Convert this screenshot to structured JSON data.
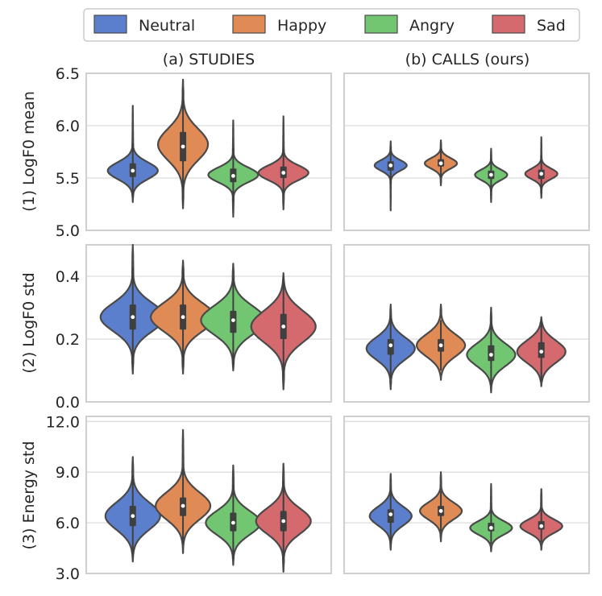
{
  "colors": {
    "Neutral": "#5B7FCC",
    "Happy": "#E08B55",
    "Angry": "#72C671",
    "Sad": "#D4696E",
    "grid": "#dcdcdc",
    "frame": "#cfcfcf",
    "outline": "#4a4a4a"
  },
  "legend": [
    "Neutral",
    "Happy",
    "Angry",
    "Sad"
  ],
  "columns": [
    "(a) STUDIES",
    "(b) CALLS (ours)"
  ],
  "chart_data": [
    {
      "type": "violin",
      "row": 0,
      "col": 0,
      "ylabel": "(1) LogF0 mean",
      "ylim": [
        5.0,
        6.5
      ],
      "yticks": [
        "5.0",
        "5.5",
        "6.0",
        "6.5"
      ],
      "ytick_values": [
        5.0,
        5.5,
        6.0,
        6.5
      ],
      "categories": [
        "Neutral",
        "Happy",
        "Angry",
        "Sad"
      ],
      "series": [
        {
          "name": "Neutral",
          "min": 5.27,
          "max": 6.19,
          "q1": 5.51,
          "median": 5.57,
          "q3": 5.64,
          "mode": 5.57,
          "spread": 0.08
        },
        {
          "name": "Happy",
          "min": 5.21,
          "max": 6.44,
          "q1": 5.66,
          "median": 5.8,
          "q3": 5.94,
          "mode": 5.82,
          "spread": 0.15
        },
        {
          "name": "Angry",
          "min": 5.13,
          "max": 6.05,
          "q1": 5.46,
          "median": 5.52,
          "q3": 5.59,
          "mode": 5.53,
          "spread": 0.07
        },
        {
          "name": "Sad",
          "min": 5.2,
          "max": 6.09,
          "q1": 5.5,
          "median": 5.55,
          "q3": 5.61,
          "mode": 5.55,
          "spread": 0.07
        }
      ]
    },
    {
      "type": "violin",
      "row": 0,
      "col": 1,
      "ylabel": "",
      "ylim": [
        5.0,
        6.5
      ],
      "categories": [
        "Neutral",
        "Happy",
        "Angry",
        "Sad"
      ],
      "series": [
        {
          "name": "Neutral",
          "min": 5.19,
          "max": 5.85,
          "q1": 5.57,
          "median": 5.62,
          "q3": 5.66,
          "mode": 5.62,
          "spread": 0.05
        },
        {
          "name": "Happy",
          "min": 5.43,
          "max": 5.86,
          "q1": 5.61,
          "median": 5.64,
          "q3": 5.68,
          "mode": 5.64,
          "spread": 0.05
        },
        {
          "name": "Angry",
          "min": 5.27,
          "max": 5.78,
          "q1": 5.49,
          "median": 5.53,
          "q3": 5.57,
          "mode": 5.53,
          "spread": 0.05
        },
        {
          "name": "Sad",
          "min": 5.31,
          "max": 5.89,
          "q1": 5.49,
          "median": 5.54,
          "q3": 5.58,
          "mode": 5.54,
          "spread": 0.05
        }
      ]
    },
    {
      "type": "violin",
      "row": 1,
      "col": 0,
      "ylabel": "(2) LogF0 std",
      "ylim": [
        0.0,
        0.5
      ],
      "yticks": [
        "0.0",
        "0.2",
        "0.4"
      ],
      "ytick_values": [
        0.0,
        0.2,
        0.4
      ],
      "categories": [
        "Neutral",
        "Happy",
        "Angry",
        "Sad"
      ],
      "series": [
        {
          "name": "Neutral",
          "min": 0.09,
          "max": 0.5,
          "q1": 0.23,
          "median": 0.27,
          "q3": 0.31,
          "mode": 0.27,
          "spread": 0.045
        },
        {
          "name": "Happy",
          "min": 0.09,
          "max": 0.45,
          "q1": 0.23,
          "median": 0.27,
          "q3": 0.31,
          "mode": 0.27,
          "spread": 0.045
        },
        {
          "name": "Angry",
          "min": 0.1,
          "max": 0.44,
          "q1": 0.22,
          "median": 0.26,
          "q3": 0.29,
          "mode": 0.26,
          "spread": 0.045
        },
        {
          "name": "Sad",
          "min": 0.04,
          "max": 0.41,
          "q1": 0.2,
          "median": 0.24,
          "q3": 0.28,
          "mode": 0.24,
          "spread": 0.05
        }
      ]
    },
    {
      "type": "violin",
      "row": 1,
      "col": 1,
      "ylabel": "",
      "ylim": [
        0.0,
        0.5
      ],
      "categories": [
        "Neutral",
        "Happy",
        "Angry",
        "Sad"
      ],
      "series": [
        {
          "name": "Neutral",
          "min": 0.04,
          "max": 0.31,
          "q1": 0.15,
          "median": 0.18,
          "q3": 0.2,
          "mode": 0.17,
          "spread": 0.035
        },
        {
          "name": "Happy",
          "min": 0.07,
          "max": 0.31,
          "q1": 0.16,
          "median": 0.18,
          "q3": 0.2,
          "mode": 0.18,
          "spread": 0.035
        },
        {
          "name": "Angry",
          "min": 0.03,
          "max": 0.3,
          "q1": 0.13,
          "median": 0.15,
          "q3": 0.18,
          "mode": 0.15,
          "spread": 0.035
        },
        {
          "name": "Sad",
          "min": 0.05,
          "max": 0.27,
          "q1": 0.14,
          "median": 0.16,
          "q3": 0.19,
          "mode": 0.16,
          "spread": 0.035
        }
      ]
    },
    {
      "type": "violin",
      "row": 2,
      "col": 0,
      "ylabel": "(3) Energy std",
      "ylim": [
        3.0,
        12.5
      ],
      "yticks": [
        "3.0",
        "6.0",
        "9.0",
        "12.0"
      ],
      "ytick_values": [
        3.0,
        6.0,
        9.0,
        12.0
      ],
      "categories": [
        "Neutral",
        "Happy",
        "Angry",
        "Sad"
      ],
      "series": [
        {
          "name": "Neutral",
          "min": 3.7,
          "max": 9.9,
          "q1": 5.8,
          "median": 6.4,
          "q3": 7.0,
          "mode": 6.4,
          "spread": 0.8
        },
        {
          "name": "Happy",
          "min": 4.2,
          "max": 11.5,
          "q1": 6.4,
          "median": 7.0,
          "q3": 7.5,
          "mode": 7.0,
          "spread": 0.8
        },
        {
          "name": "Angry",
          "min": 3.5,
          "max": 9.4,
          "q1": 5.5,
          "median": 6.0,
          "q3": 6.6,
          "mode": 6.0,
          "spread": 0.7
        },
        {
          "name": "Sad",
          "min": 3.1,
          "max": 9.5,
          "q1": 5.5,
          "median": 6.1,
          "q3": 6.7,
          "mode": 6.1,
          "spread": 0.75
        }
      ]
    },
    {
      "type": "violin",
      "row": 2,
      "col": 1,
      "ylabel": "",
      "ylim": [
        3.0,
        12.5
      ],
      "categories": [
        "Neutral",
        "Happy",
        "Angry",
        "Sad"
      ],
      "series": [
        {
          "name": "Neutral",
          "min": 4.4,
          "max": 8.9,
          "q1": 6.0,
          "median": 6.5,
          "q3": 6.8,
          "mode": 6.4,
          "spread": 0.55
        },
        {
          "name": "Happy",
          "min": 4.9,
          "max": 9.0,
          "q1": 6.4,
          "median": 6.7,
          "q3": 7.0,
          "mode": 6.7,
          "spread": 0.5
        },
        {
          "name": "Angry",
          "min": 4.3,
          "max": 8.3,
          "q1": 5.5,
          "median": 5.7,
          "q3": 6.0,
          "mode": 5.7,
          "spread": 0.4
        },
        {
          "name": "Sad",
          "min": 4.4,
          "max": 8.0,
          "q1": 5.6,
          "median": 5.8,
          "q3": 6.1,
          "mode": 5.8,
          "spread": 0.4
        }
      ]
    }
  ]
}
